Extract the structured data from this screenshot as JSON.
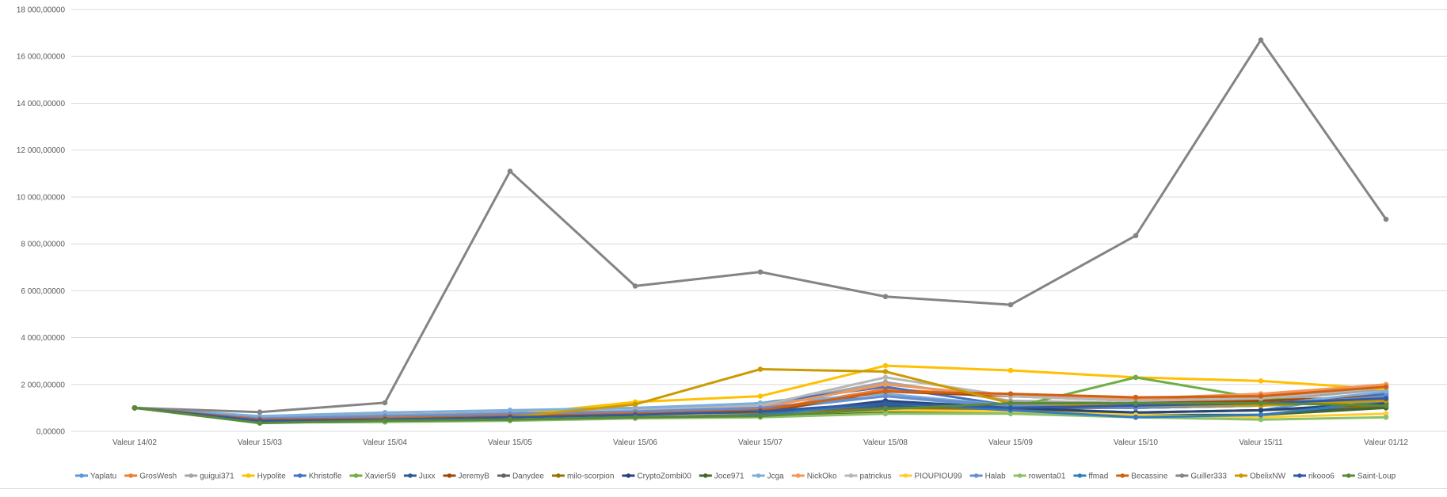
{
  "chart_data": {
    "type": "line",
    "title": "",
    "xlabel": "",
    "ylabel": "",
    "ylim": [
      0,
      18000
    ],
    "y_ticks": [
      0,
      2000,
      4000,
      6000,
      8000,
      10000,
      12000,
      14000,
      16000,
      18000
    ],
    "y_tick_labels": [
      "0,00000",
      "2 000,00000",
      "4 000,00000",
      "6 000,00000",
      "8 000,00000",
      "10 000,00000",
      "12 000,00000",
      "14 000,00000",
      "16 000,00000",
      "18 000,00000"
    ],
    "grid": true,
    "legend": "bottom",
    "categories": [
      "Valeur 14/02",
      "Valeur 15/03",
      "Valeur 15/04",
      "Valeur 15/05",
      "Valeur 15/06",
      "Valeur 15/07",
      "Valeur 15/08",
      "Valeur 15/09",
      "Valeur 15/10",
      "Valeur 15/11",
      "Valeur 01/12"
    ],
    "series": [
      {
        "name": "Yaplatu",
        "color": "#5b9bd5",
        "values": [
          1000,
          550,
          600,
          650,
          750,
          900,
          1500,
          1000,
          800,
          900,
          1700
        ]
      },
      {
        "name": "GrosWesh",
        "color": "#ed7d31",
        "values": [
          1000,
          450,
          550,
          650,
          750,
          900,
          1800,
          1500,
          1400,
          1500,
          1900
        ]
      },
      {
        "name": "guigui371",
        "color": "#a5a5a5",
        "values": [
          1000,
          600,
          700,
          800,
          900,
          1100,
          2100,
          1300,
          1200,
          1300,
          1800
        ]
      },
      {
        "name": "Hypolite",
        "color": "#ffc000",
        "values": [
          1000,
          500,
          550,
          700,
          1250,
          1500,
          2800,
          2600,
          2300,
          2150,
          1800
        ]
      },
      {
        "name": "Khristofle",
        "color": "#4472c4",
        "values": [
          1000,
          500,
          600,
          700,
          900,
          1200,
          1900,
          1100,
          1000,
          1100,
          1600
        ]
      },
      {
        "name": "Xavier59",
        "color": "#70ad47",
        "values": [
          1000,
          400,
          500,
          550,
          650,
          700,
          1000,
          1000,
          2300,
          1400,
          1200
        ]
      },
      {
        "name": "Juxx",
        "color": "#255e91",
        "values": [
          1000,
          380,
          400,
          550,
          650,
          750,
          1100,
          900,
          650,
          700,
          1100
        ]
      },
      {
        "name": "JeremyB",
        "color": "#9e480e",
        "values": [
          1000,
          450,
          500,
          600,
          700,
          800,
          1700,
          1500,
          1300,
          1300,
          1500
        ]
      },
      {
        "name": "Danydee",
        "color": "#636363",
        "values": [
          1000,
          480,
          520,
          600,
          700,
          800,
          1000,
          1000,
          1000,
          1100,
          1300
        ]
      },
      {
        "name": "milo-scorpion",
        "color": "#997300",
        "values": [
          1000,
          450,
          500,
          550,
          650,
          750,
          950,
          900,
          800,
          900,
          1100
        ]
      },
      {
        "name": "CryptoZombi00",
        "color": "#264478",
        "values": [
          1000,
          420,
          480,
          550,
          650,
          700,
          1300,
          1000,
          800,
          900,
          1200
        ]
      },
      {
        "name": "Joce971",
        "color": "#43682b",
        "values": [
          1000,
          400,
          450,
          500,
          600,
          650,
          850,
          850,
          700,
          700,
          1000
        ]
      },
      {
        "name": "Jcga",
        "color": "#7cafdd",
        "values": [
          1000,
          650,
          800,
          900,
          1000,
          1200,
          1600,
          1100,
          1000,
          1100,
          1700
        ]
      },
      {
        "name": "NickOko",
        "color": "#f1975a",
        "values": [
          1000,
          500,
          600,
          700,
          800,
          1000,
          2000,
          1500,
          1400,
          1600,
          2000
        ]
      },
      {
        "name": "patrickus",
        "color": "#b7b7b7",
        "values": [
          1000,
          550,
          650,
          750,
          900,
          1100,
          2300,
          1500,
          1300,
          1400,
          1900
        ]
      },
      {
        "name": "PIOUPIOU99",
        "color": "#ffcd33",
        "values": [
          1000,
          450,
          500,
          550,
          650,
          700,
          900,
          850,
          700,
          600,
          750
        ]
      },
      {
        "name": "Halab",
        "color": "#698ed0",
        "values": [
          1000,
          550,
          650,
          750,
          850,
          1000,
          1500,
          1100,
          1000,
          1100,
          1500
        ]
      },
      {
        "name": "rowenta01",
        "color": "#8cc168",
        "values": [
          1000,
          380,
          400,
          450,
          550,
          600,
          750,
          750,
          600,
          500,
          600
        ]
      },
      {
        "name": "ffmad",
        "color": "#327dc2",
        "values": [
          1000,
          420,
          450,
          500,
          600,
          700,
          1200,
          900,
          600,
          700,
          1300
        ]
      },
      {
        "name": "Becassine",
        "color": "#d26012",
        "values": [
          1000,
          500,
          550,
          650,
          750,
          900,
          1700,
          1600,
          1450,
          1500,
          1900
        ]
      },
      {
        "name": "Guiller333",
        "color": "#848484",
        "values": [
          1000,
          820,
          1220,
          11100,
          6200,
          6800,
          5750,
          5400,
          8350,
          16700,
          9050
        ]
      },
      {
        "name": "ObelixNW",
        "color": "#cc9a00",
        "values": [
          1000,
          450,
          500,
          600,
          1150,
          2650,
          2550,
          1200,
          1100,
          1100,
          1300
        ]
      },
      {
        "name": "rikooo6",
        "color": "#335aa1",
        "values": [
          1000,
          450,
          500,
          600,
          700,
          850,
          1200,
          1000,
          1100,
          1200,
          1400
        ]
      },
      {
        "name": "Saint-Loup",
        "color": "#5a8a39",
        "values": [
          1000,
          350,
          450,
          500,
          600,
          650,
          950,
          1200,
          1200,
          1200,
          1100
        ]
      }
    ]
  }
}
